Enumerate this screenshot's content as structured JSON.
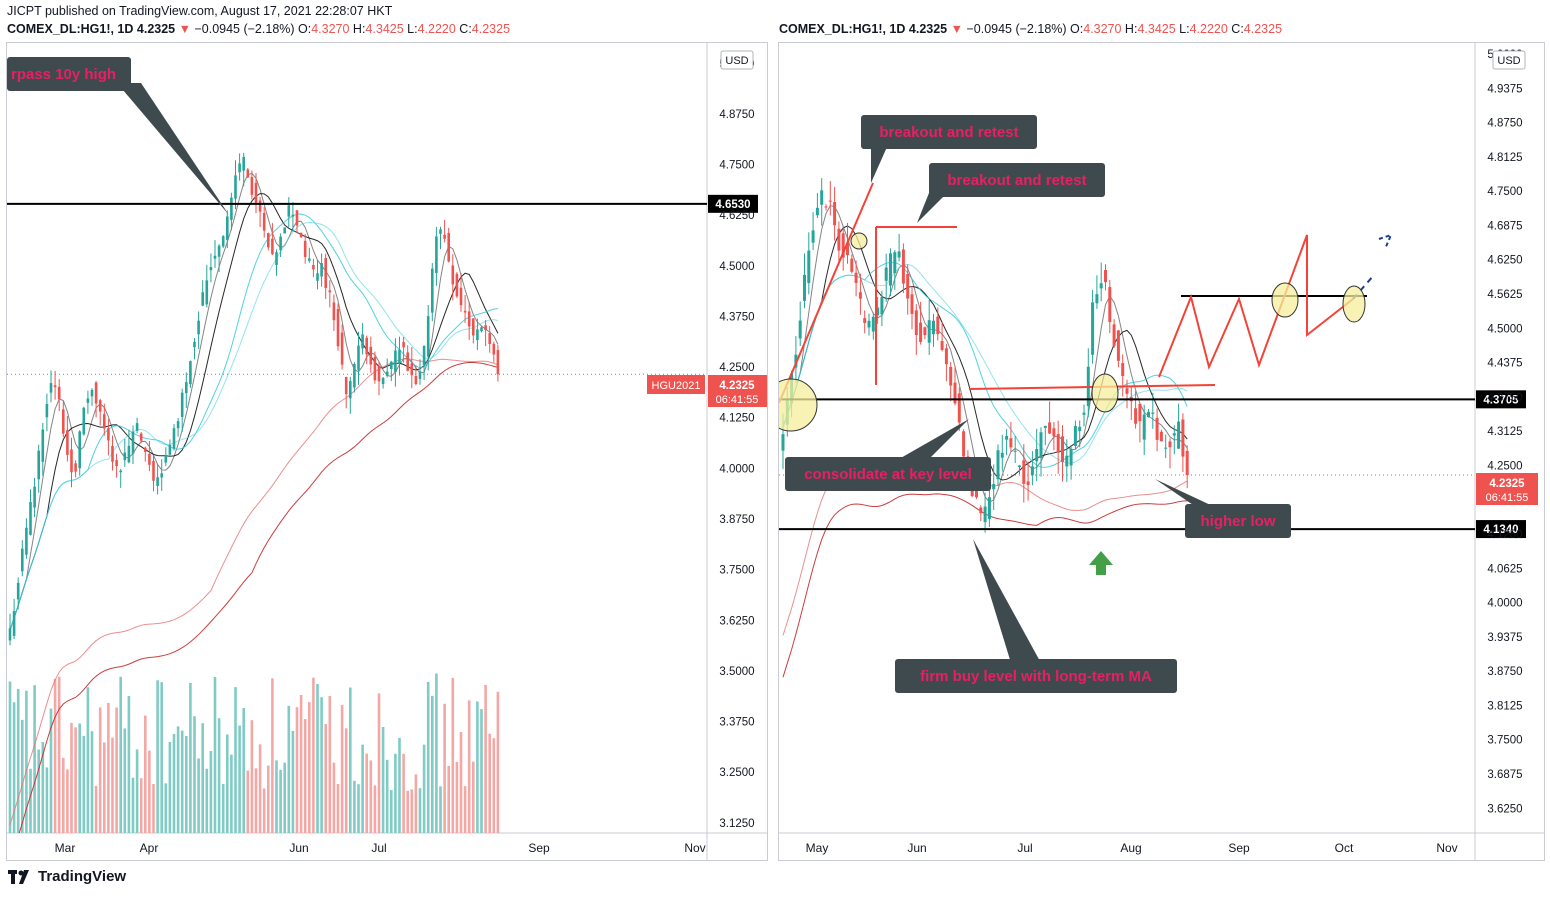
{
  "header": {
    "publisher": "JICPT published on TradingView.com, August 17, 2021 22:28:07 HKT"
  },
  "left_panel": {
    "symbol": "COMEX_DL:HG1!, 1D",
    "last": "4.2325",
    "change": "−0.0945 (−2.18%)",
    "o": "4.3270",
    "h": "4.3425",
    "l": "4.2220",
    "c": "4.2325"
  },
  "right_panel": {
    "symbol": "COMEX_DL:HG1!, 1D",
    "last": "4.2325",
    "change": "−0.0945 (−2.18%)",
    "o": "4.3270",
    "h": "4.3425",
    "l": "4.2220",
    "c": "4.2325"
  },
  "footer": {
    "brand": "TradingView"
  },
  "colors": {
    "up": "#26a69a",
    "down": "#ef5350",
    "accent_text": "#e91e63",
    "callout_bg": "#3f4a4f"
  },
  "chart_data": [
    {
      "type": "candlestick",
      "currency": "USD",
      "ylim": [
        3.1,
        5.05
      ],
      "y_ticks": [
        "5.0000",
        "4.8750",
        "4.7500",
        "4.6250",
        "4.5000",
        "4.3750",
        "4.2500",
        "4.1250",
        "4.0000",
        "3.8750",
        "3.7500",
        "3.6250",
        "3.5000",
        "3.3750",
        "3.2500",
        "3.1250"
      ],
      "x_ticks": [
        "Mar",
        "Apr",
        "Jun",
        "Jul",
        "Sep",
        "Nov"
      ],
      "horizontal_lines": [
        {
          "price": 4.653,
          "label": "4.6530"
        }
      ],
      "price_label": {
        "symbol": "HGU2021",
        "price": "4.2325",
        "countdown": "06:41:55"
      },
      "annotations": [
        "rpass 10y high"
      ],
      "close_path": [
        3.6,
        3.72,
        3.85,
        3.95,
        4.1,
        4.22,
        4.18,
        4.05,
        3.98,
        4.12,
        4.2,
        4.15,
        4.08,
        4.02,
        4.0,
        4.07,
        4.1,
        4.02,
        3.97,
        4.0,
        4.05,
        4.13,
        4.22,
        4.32,
        4.42,
        4.5,
        4.55,
        4.6,
        4.7,
        4.78,
        4.7,
        4.64,
        4.56,
        4.5,
        4.58,
        4.65,
        4.6,
        4.52,
        4.48,
        4.5,
        4.42,
        4.32,
        4.18,
        4.25,
        4.32,
        4.28,
        4.2,
        4.22,
        4.28,
        4.3,
        4.22,
        4.2,
        4.32,
        4.55,
        4.6,
        4.5,
        4.42,
        4.38,
        4.32,
        4.36,
        4.32,
        4.2325
      ]
    },
    {
      "type": "candlestick",
      "currency": "USD",
      "ylim": [
        3.58,
        5.02
      ],
      "y_ticks": [
        "5.0000",
        "4.9375",
        "4.8750",
        "4.8125",
        "4.7500",
        "4.6875",
        "4.6250",
        "4.5625",
        "4.5000",
        "4.4375",
        "4.3750",
        "4.3125",
        "4.2500",
        "4.1875",
        "4.1250",
        "4.0625",
        "4.0000",
        "3.9375",
        "3.8750",
        "3.8125",
        "3.7500",
        "3.6875",
        "3.6250"
      ],
      "x_ticks": [
        "May",
        "Jun",
        "Jul",
        "Aug",
        "Sep",
        "Oct",
        "Nov"
      ],
      "horizontal_lines": [
        {
          "price": 4.3705,
          "label": "4.3705"
        },
        {
          "price": 4.134,
          "label": "4.1340"
        }
      ],
      "price_label": {
        "price": "4.2325",
        "countdown": "06:41:55"
      },
      "annotations": [
        "breakout and retest",
        "breakout and retest",
        "consolidate at key level",
        "higher low",
        "firm buy level with long-term MA"
      ],
      "close_path": [
        4.32,
        4.42,
        4.55,
        4.68,
        4.75,
        4.72,
        4.65,
        4.62,
        4.55,
        4.5,
        4.52,
        4.6,
        4.65,
        4.58,
        4.5,
        4.48,
        4.52,
        4.45,
        4.4,
        4.3,
        4.22,
        4.15,
        4.2,
        4.28,
        4.3,
        4.25,
        4.22,
        4.28,
        4.32,
        4.3,
        4.25,
        4.3,
        4.35,
        4.55,
        4.6,
        4.5,
        4.42,
        4.36,
        4.32,
        4.35,
        4.3,
        4.28,
        4.32,
        4.2325
      ]
    }
  ]
}
